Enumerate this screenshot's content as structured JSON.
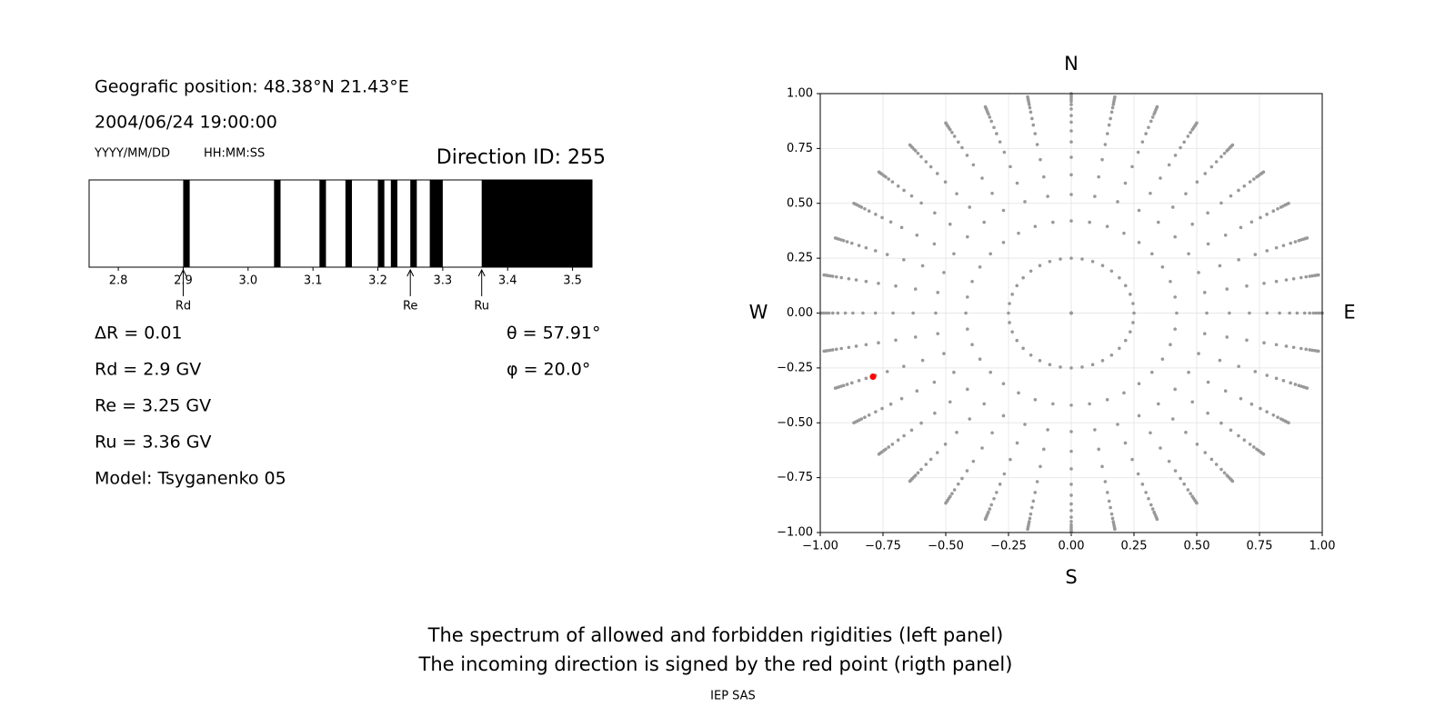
{
  "info": {
    "position": "Geografic position: 48.38°N 21.43°E",
    "datetime": "2004/06/24 19:00:00",
    "date_format": "YYYY/MM/DD",
    "time_format": "HH:MM:SS",
    "direction_id": "Direction ID: 255",
    "params": [
      "ΔR = 0.01",
      "Rd = 2.9 GV",
      "Re = 3.25 GV",
      "Ru = 3.36 GV",
      "Model: Tsyganenko 05"
    ],
    "angles": [
      "θ = 57.91°",
      "φ = 20.0°"
    ]
  },
  "caption": [
    "The spectrum of allowed and forbidden rigidities (left panel)",
    "The incoming direction is signed by the red point (rigth panel)"
  ],
  "credit": "IEP SAS",
  "chart_data": [
    {
      "type": "spectrum",
      "color": "#000000",
      "xlim": [
        2.755,
        3.53
      ],
      "xticks": [
        2.8,
        2.9,
        {
          "value": 3.0,
          "label": "3.0"
        },
        3.1,
        3.2,
        3.3,
        3.4,
        3.5
      ],
      "bands": [
        [
          2.9,
          2.91
        ],
        [
          3.04,
          3.05
        ],
        [
          3.11,
          3.12
        ],
        [
          3.15,
          3.16
        ],
        [
          3.2,
          3.21
        ],
        [
          3.22,
          3.23
        ],
        [
          3.25,
          3.26
        ],
        [
          3.28,
          3.3
        ],
        [
          3.36,
          3.53
        ]
      ],
      "markers": [
        {
          "name": "Rd",
          "value": 2.9
        },
        {
          "name": "Re",
          "value": 3.25
        },
        {
          "name": "Ru",
          "value": 3.36
        }
      ]
    },
    {
      "type": "scatter",
      "grid": true,
      "xlim": [
        -1,
        1
      ],
      "ylim": [
        -1,
        1
      ],
      "xticks": [
        {
          "value": -1,
          "label": "−1.00"
        },
        {
          "value": -0.75,
          "label": "−0.75"
        },
        {
          "value": -0.5,
          "label": "−0.50"
        },
        {
          "value": -0.25,
          "label": "−0.25"
        },
        {
          "value": 0,
          "label": "0.00"
        },
        {
          "value": 0.25,
          "label": "0.25"
        },
        {
          "value": 0.5,
          "label": "0.50"
        },
        {
          "value": 0.75,
          "label": "0.75"
        },
        {
          "value": 1,
          "label": "1.00"
        }
      ],
      "yticks": [
        {
          "value": -1,
          "label": "−1.00"
        },
        {
          "value": -0.75,
          "label": "−0.75"
        },
        {
          "value": -0.5,
          "label": "−0.50"
        },
        {
          "value": -0.25,
          "label": "−0.25"
        },
        {
          "value": 0,
          "label": "0.00"
        },
        {
          "value": 0.25,
          "label": "0.25"
        },
        {
          "value": 0.5,
          "label": "0.50"
        },
        {
          "value": 0.75,
          "label": "0.75"
        },
        {
          "value": 1,
          "label": "1.00"
        }
      ],
      "direction_labels": [
        "N",
        "S",
        "W",
        "E"
      ],
      "grid_points": {
        "color": "#999999",
        "azimuths": [
          0,
          10,
          20,
          30,
          40,
          50,
          60,
          70,
          80,
          90,
          100,
          110,
          120,
          130,
          140,
          150,
          160,
          170,
          180,
          190,
          200,
          210,
          220,
          230,
          240,
          250,
          260,
          270,
          280,
          290,
          300,
          310,
          320,
          330,
          340,
          350
        ],
        "radii": [
          0,
          0.25,
          0.42,
          0.54,
          0.63,
          0.71,
          0.78,
          0.83,
          0.87,
          0.9,
          0.93,
          0.95,
          0.965,
          0.975,
          0.985,
          0.993,
          1.0
        ]
      },
      "series": [
        {
          "color": "#ff0000",
          "x": [
            -0.79
          ],
          "y": [
            -0.29
          ]
        }
      ]
    }
  ]
}
